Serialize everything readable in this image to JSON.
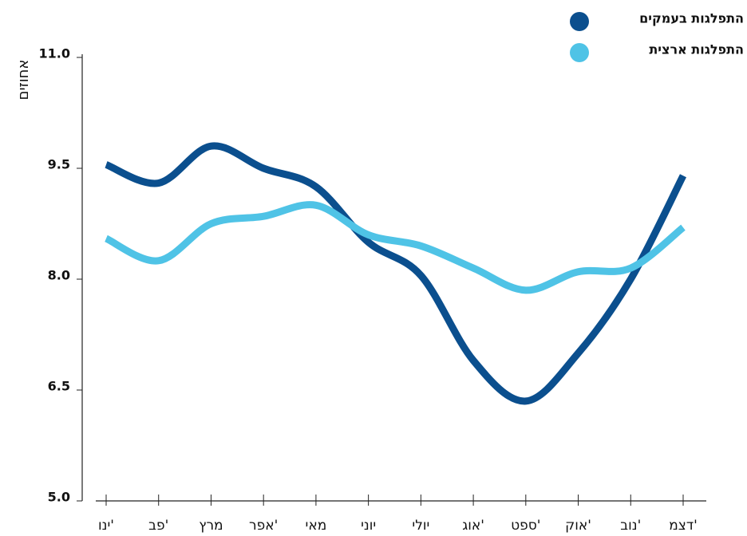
{
  "chart_data": {
    "type": "line",
    "y_label": "אחוזים",
    "categories": [
      "ינו'",
      "פב'",
      "מרץ",
      "אפר'",
      "מאי",
      "יוני",
      "יולי",
      "אוג'",
      "ספט'",
      "אוק'",
      "נוב'",
      "דצמ'"
    ],
    "series": [
      {
        "name": "התפלגות בעמקים",
        "color": "#0b4f8e",
        "values": [
          9.55,
          9.3,
          9.8,
          9.5,
          9.25,
          8.5,
          8.05,
          6.9,
          6.35,
          7.0,
          8.0,
          9.4
        ]
      },
      {
        "name": "התפלגות ארצית",
        "color": "#4fc3e6",
        "values": [
          8.55,
          8.25,
          8.75,
          8.85,
          9.0,
          8.6,
          8.45,
          8.15,
          7.85,
          8.1,
          8.15,
          8.7
        ]
      }
    ],
    "ylim": [
      5,
      11
    ],
    "yticks": [
      {
        "value": 5,
        "label": "5.0"
      },
      {
        "value": 6.5,
        "label": "6.5"
      },
      {
        "value": 8,
        "label": "8.0"
      },
      {
        "value": 9.5,
        "label": "9.5"
      },
      {
        "value": 11,
        "label": "11.0"
      }
    ],
    "legend": "top-right"
  }
}
